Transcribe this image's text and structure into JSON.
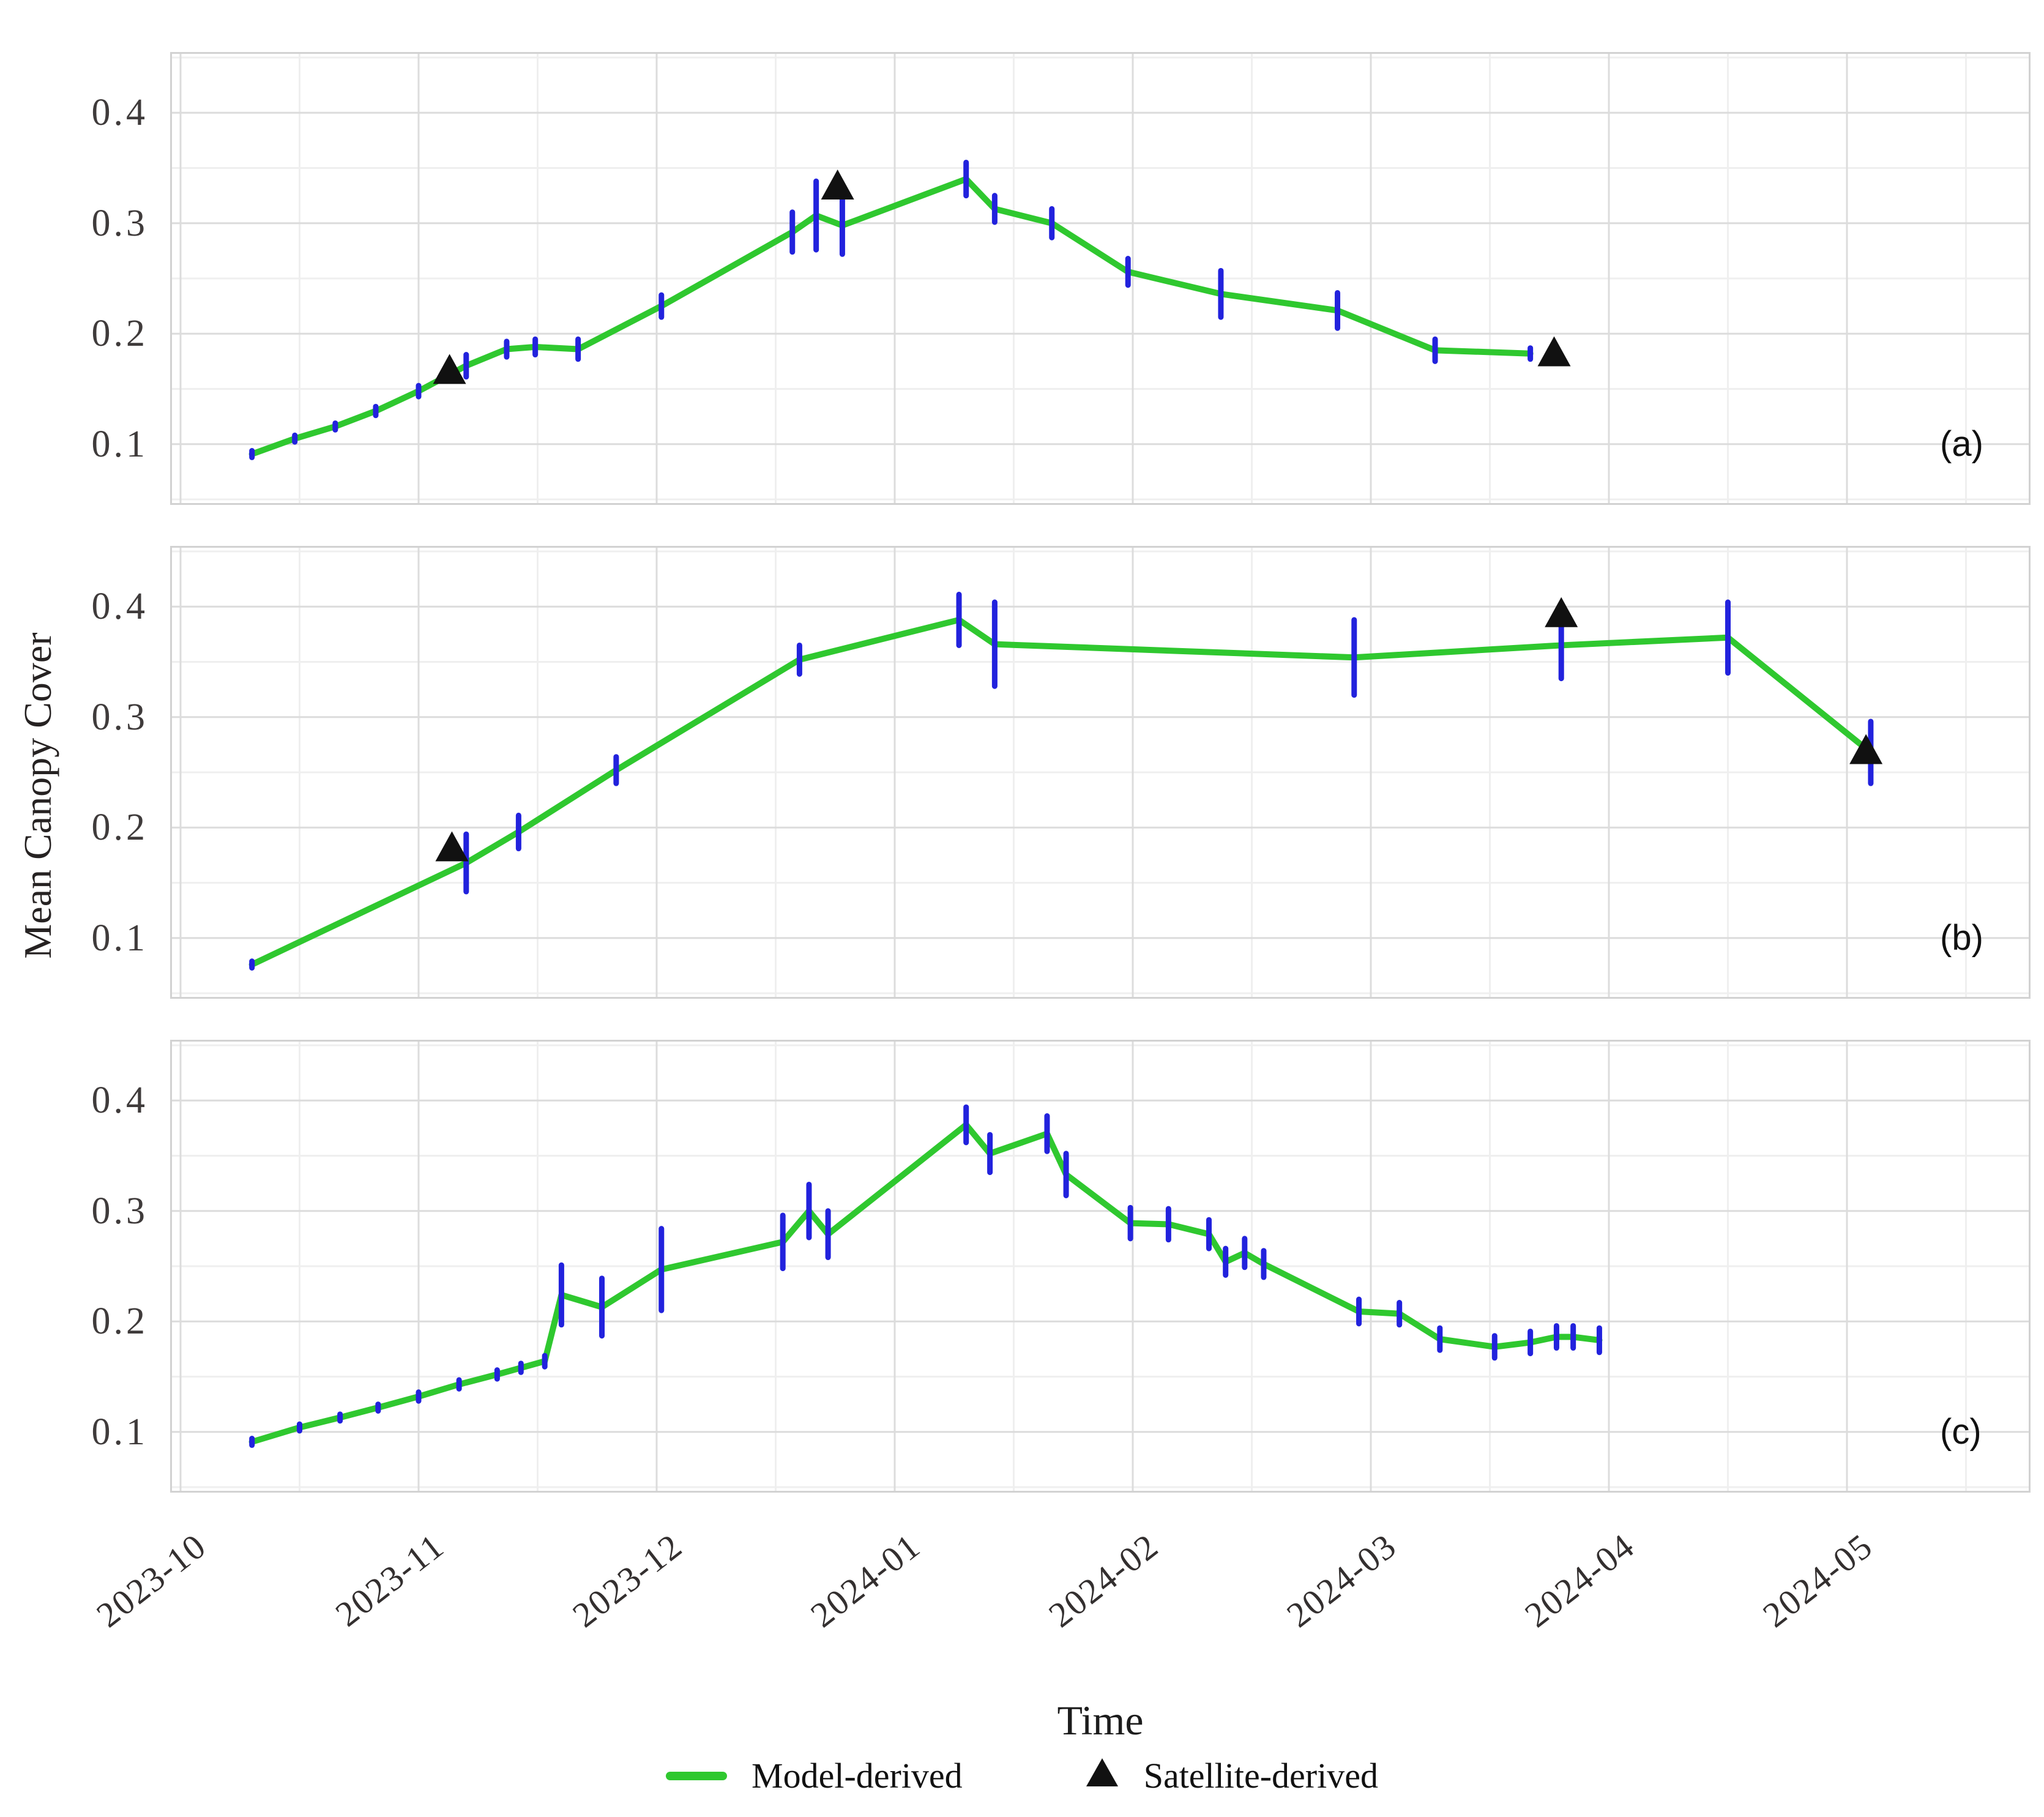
{
  "figure": {
    "kind": "three-panel time series figure",
    "background": "#ffffff"
  },
  "colors": {
    "model_line": "#2fc82f",
    "error_bar": "#2222dd",
    "satellite": "#111111",
    "grid_major": "#dcdcdc",
    "grid_minor": "#efefef",
    "panel_border": "#d2d2d2",
    "tick_text": "#3f3b3b"
  },
  "chart_data": {
    "type": "line",
    "xlabel": "Time",
    "ylabel": "Mean Canopy Cover",
    "x_tick_labels": [
      "2023-10",
      "2023-11",
      "2023-12",
      "2024-01",
      "2024-02",
      "2024-03",
      "2024-04",
      "2024-05"
    ],
    "y_tick_labels": [
      "0.4",
      "0.3",
      "0.2",
      "0.1"
    ],
    "y_ticks": [
      0.4,
      0.3,
      0.2,
      0.1
    ],
    "ylim": [
      0.045,
      0.455
    ],
    "x_unit": "months since 2023-10-01",
    "xlim_months": [
      -0.045,
      7.775
    ],
    "grid": "major and minor, light gray on white",
    "legend_position": "bottom center",
    "legend": [
      {
        "label": "Model-derived",
        "marker": "line",
        "color": "#2fc82f"
      },
      {
        "label": "Satellite-derived",
        "marker": "triangle",
        "color": "#111111"
      }
    ],
    "panels": [
      {
        "tag": "(a)",
        "model": [
          {
            "t": 0.3,
            "v": 0.091,
            "e": 0.003
          },
          {
            "t": 0.48,
            "v": 0.105,
            "e": 0.003
          },
          {
            "t": 0.65,
            "v": 0.116,
            "e": 0.003
          },
          {
            "t": 0.82,
            "v": 0.13,
            "e": 0.004
          },
          {
            "t": 1.0,
            "v": 0.148,
            "e": 0.005
          },
          {
            "t": 1.2,
            "v": 0.171,
            "e": 0.01
          },
          {
            "t": 1.37,
            "v": 0.186,
            "e": 0.007
          },
          {
            "t": 1.49,
            "v": 0.188,
            "e": 0.007
          },
          {
            "t": 1.67,
            "v": 0.186,
            "e": 0.009
          },
          {
            "t": 2.02,
            "v": 0.225,
            "e": 0.01
          },
          {
            "t": 2.57,
            "v": 0.292,
            "e": 0.018
          },
          {
            "t": 2.67,
            "v": 0.307,
            "e": 0.031
          },
          {
            "t": 2.78,
            "v": 0.298,
            "e": 0.026
          },
          {
            "t": 3.3,
            "v": 0.34,
            "e": 0.015
          },
          {
            "t": 3.42,
            "v": 0.313,
            "e": 0.012
          },
          {
            "t": 3.66,
            "v": 0.3,
            "e": 0.013
          },
          {
            "t": 3.98,
            "v": 0.256,
            "e": 0.012
          },
          {
            "t": 4.37,
            "v": 0.236,
            "e": 0.021
          },
          {
            "t": 4.86,
            "v": 0.221,
            "e": 0.016
          },
          {
            "t": 5.27,
            "v": 0.185,
            "e": 0.01
          },
          {
            "t": 5.67,
            "v": 0.182,
            "e": 0.005
          }
        ],
        "satellite": [
          {
            "t": 1.13,
            "v": 0.165
          },
          {
            "t": 2.76,
            "v": 0.332
          },
          {
            "t": 5.77,
            "v": 0.181
          }
        ]
      },
      {
        "tag": "(b)",
        "model": [
          {
            "t": 0.3,
            "v": 0.076,
            "e": 0.003
          },
          {
            "t": 1.2,
            "v": 0.168,
            "e": 0.026
          },
          {
            "t": 1.42,
            "v": 0.196,
            "e": 0.015
          },
          {
            "t": 1.83,
            "v": 0.252,
            "e": 0.012
          },
          {
            "t": 2.6,
            "v": 0.352,
            "e": 0.013
          },
          {
            "t": 3.27,
            "v": 0.388,
            "e": 0.023
          },
          {
            "t": 3.42,
            "v": 0.366,
            "e": 0.038
          },
          {
            "t": 4.93,
            "v": 0.354,
            "e": 0.034
          },
          {
            "t": 5.8,
            "v": 0.365,
            "e": 0.03
          },
          {
            "t": 6.5,
            "v": 0.372,
            "e": 0.032
          },
          {
            "t": 7.1,
            "v": 0.268,
            "e": 0.028
          }
        ],
        "satellite": [
          {
            "t": 1.14,
            "v": 0.18
          },
          {
            "t": 5.8,
            "v": 0.392
          },
          {
            "t": 7.08,
            "v": 0.268
          }
        ]
      },
      {
        "tag": "(c)",
        "model": [
          {
            "t": 0.3,
            "v": 0.091,
            "e": 0.003
          },
          {
            "t": 0.5,
            "v": 0.104,
            "e": 0.003
          },
          {
            "t": 0.67,
            "v": 0.113,
            "e": 0.003
          },
          {
            "t": 0.83,
            "v": 0.122,
            "e": 0.003
          },
          {
            "t": 1.0,
            "v": 0.132,
            "e": 0.004
          },
          {
            "t": 1.17,
            "v": 0.143,
            "e": 0.004
          },
          {
            "t": 1.33,
            "v": 0.152,
            "e": 0.004
          },
          {
            "t": 1.43,
            "v": 0.158,
            "e": 0.004
          },
          {
            "t": 1.53,
            "v": 0.164,
            "e": 0.005
          },
          {
            "t": 1.6,
            "v": 0.224,
            "e": 0.027
          },
          {
            "t": 1.77,
            "v": 0.213,
            "e": 0.026
          },
          {
            "t": 2.02,
            "v": 0.247,
            "e": 0.037
          },
          {
            "t": 2.53,
            "v": 0.272,
            "e": 0.024
          },
          {
            "t": 2.64,
            "v": 0.3,
            "e": 0.024
          },
          {
            "t": 2.72,
            "v": 0.279,
            "e": 0.021
          },
          {
            "t": 3.3,
            "v": 0.378,
            "e": 0.016
          },
          {
            "t": 3.4,
            "v": 0.352,
            "e": 0.017
          },
          {
            "t": 3.64,
            "v": 0.37,
            "e": 0.016
          },
          {
            "t": 3.72,
            "v": 0.333,
            "e": 0.019
          },
          {
            "t": 3.99,
            "v": 0.289,
            "e": 0.014
          },
          {
            "t": 4.15,
            "v": 0.288,
            "e": 0.014
          },
          {
            "t": 4.32,
            "v": 0.279,
            "e": 0.013
          },
          {
            "t": 4.39,
            "v": 0.254,
            "e": 0.012
          },
          {
            "t": 4.47,
            "v": 0.262,
            "e": 0.013
          },
          {
            "t": 4.55,
            "v": 0.252,
            "e": 0.012
          },
          {
            "t": 4.95,
            "v": 0.209,
            "e": 0.011
          },
          {
            "t": 5.12,
            "v": 0.207,
            "e": 0.01
          },
          {
            "t": 5.29,
            "v": 0.184,
            "e": 0.01
          },
          {
            "t": 5.52,
            "v": 0.177,
            "e": 0.01
          },
          {
            "t": 5.67,
            "v": 0.181,
            "e": 0.01
          },
          {
            "t": 5.78,
            "v": 0.186,
            "e": 0.01
          },
          {
            "t": 5.85,
            "v": 0.186,
            "e": 0.01
          },
          {
            "t": 5.96,
            "v": 0.183,
            "e": 0.011
          }
        ],
        "satellite": []
      }
    ]
  }
}
